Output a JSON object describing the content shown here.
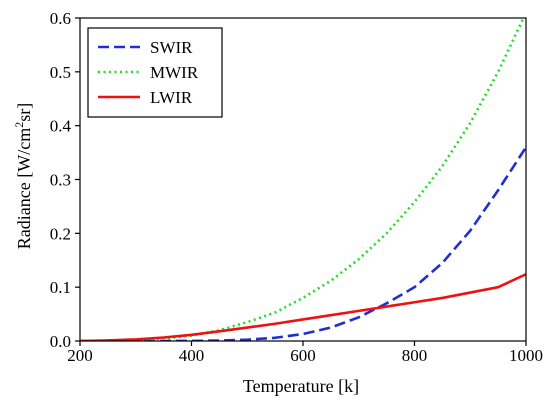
{
  "chart_data": {
    "type": "line",
    "xlabel": "Temperature [k]",
    "ylabel_parts": [
      "Radiance [W/cm",
      "2",
      "sr]"
    ],
    "xlim": [
      200,
      1000
    ],
    "ylim": [
      0,
      0.6
    ],
    "xticks": [
      200,
      400,
      600,
      800,
      1000
    ],
    "yticks": [
      0.0,
      0.1,
      0.2,
      0.3,
      0.4,
      0.5,
      0.6
    ],
    "ytick_labels": [
      "0.0",
      "0.1",
      "0.2",
      "0.3",
      "0.4",
      "0.5",
      "0.6"
    ],
    "grid": false,
    "legend_position": "top-left",
    "x": [
      200,
      250,
      300,
      350,
      400,
      450,
      500,
      550,
      600,
      650,
      700,
      750,
      800,
      850,
      900,
      950,
      1000
    ],
    "series": [
      {
        "name": "SWIR",
        "color": "#1f2fd6",
        "dash": "dashed",
        "values": [
          0.0,
          0.0,
          0.0,
          0.0,
          0.0002,
          0.0008,
          0.0025,
          0.006,
          0.013,
          0.025,
          0.044,
          0.07,
          0.1,
          0.145,
          0.205,
          0.28,
          0.36
        ]
      },
      {
        "name": "MWIR",
        "color": "#22dd22",
        "dash": "dotted",
        "values": [
          0.0,
          0.0003,
          0.0015,
          0.0045,
          0.01,
          0.02,
          0.035,
          0.053,
          0.08,
          0.112,
          0.152,
          0.2,
          0.258,
          0.325,
          0.405,
          0.5,
          0.61
        ]
      },
      {
        "name": "LWIR",
        "color": "#ee1111",
        "dash": "solid",
        "values": [
          0.0,
          0.001,
          0.003,
          0.0065,
          0.0115,
          0.018,
          0.025,
          0.032,
          0.04,
          0.048,
          0.056,
          0.064,
          0.072,
          0.08,
          0.09,
          0.1,
          0.124
        ]
      }
    ]
  }
}
